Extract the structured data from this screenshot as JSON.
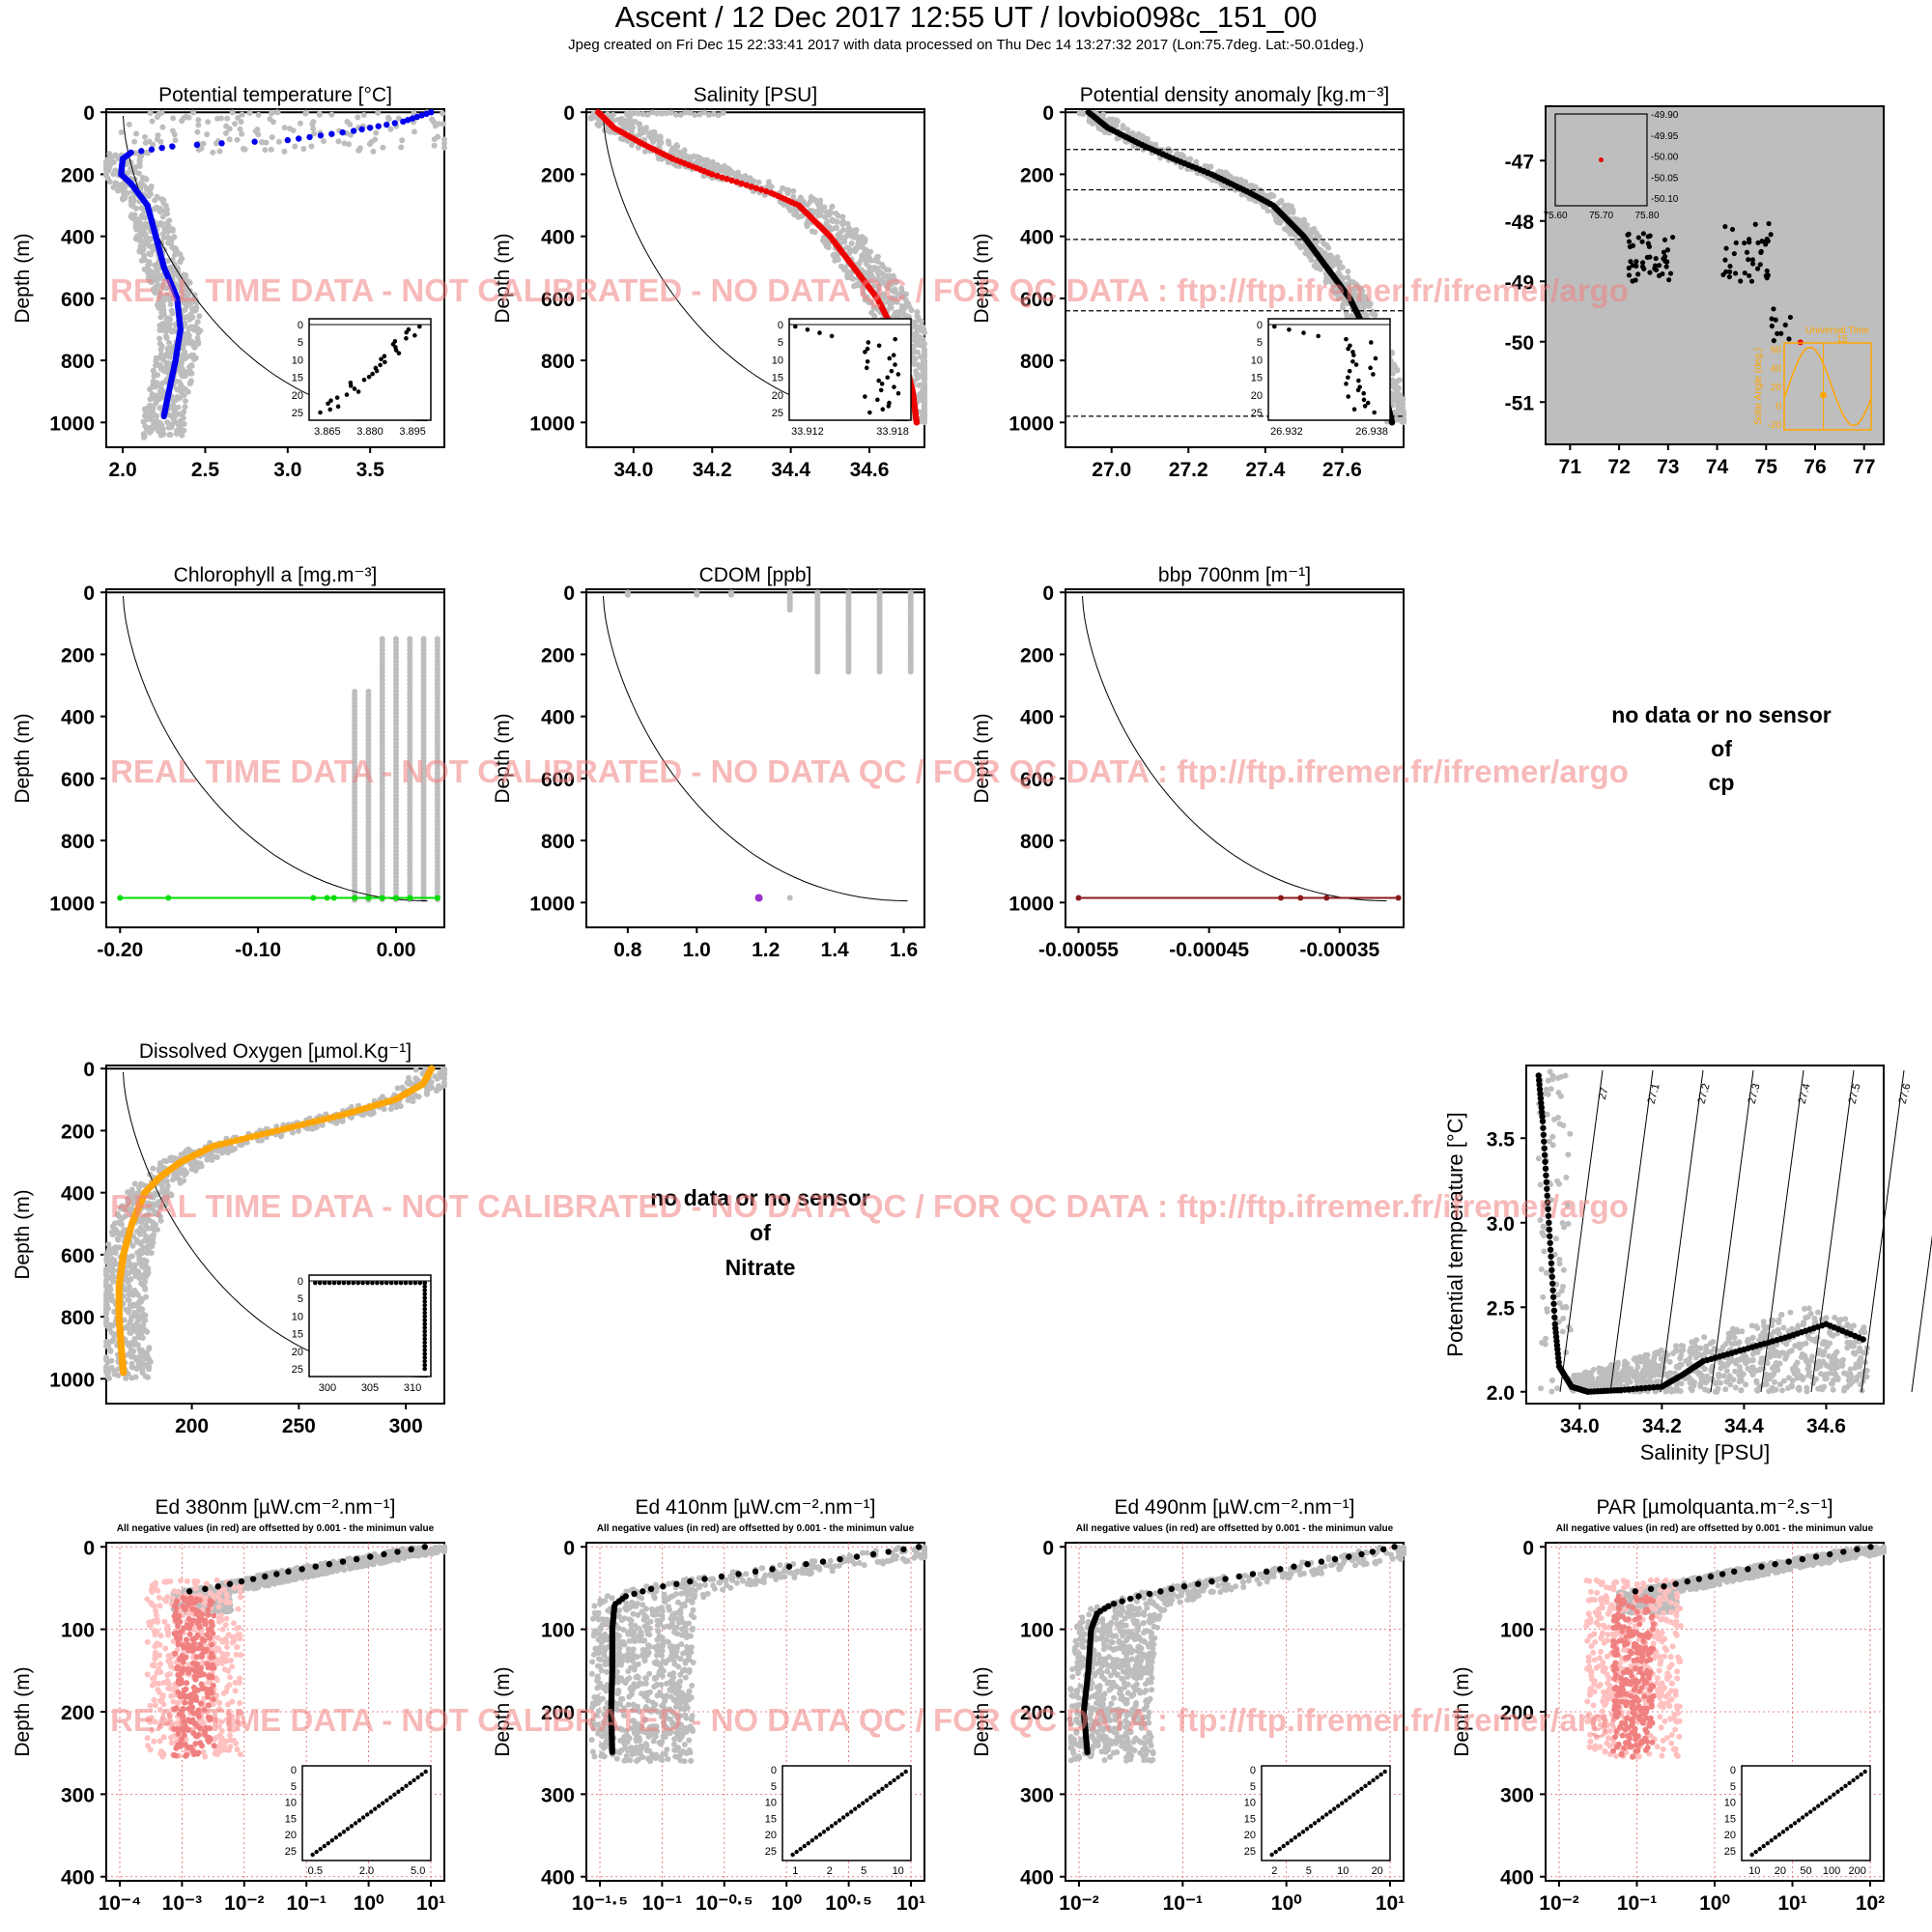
{
  "header": {
    "title": "Ascent / 12 Dec 2017 12:55 UT /  lovbio098c_151_00",
    "subtitle": "Jpeg created on Fri Dec 15 22:33:41 2017 with data processed on Thu Dec 14 13:27:32 2017 (Lon:75.7deg. Lat:-50.01deg.)"
  },
  "watermark": "REAL TIME DATA - NOT CALIBRATED - NO DATA QC   /  FOR QC DATA : ftp://ftp.ifremer.fr/ifremer/argo",
  "depth_label": "Depth (m)",
  "ed_note": "All negative values (in red) are offsetted by 0.001 - the minimun value",
  "colors": {
    "grey": "#bdbdbd",
    "temp": "#0000ee",
    "sal": "#ee0000",
    "dens": "#000000",
    "chl": "#00dd00",
    "cdom": "#9932cc",
    "bbp": "#8b1a1a",
    "oxy": "#ffa500",
    "edneg": "#f08080",
    "edneg_light": "#ffc0c0",
    "map_bg": "#bebebe",
    "sun": "#ffa500"
  },
  "nodata": {
    "cp": [
      "no data or no sensor",
      "of",
      "cp"
    ],
    "nitrate": [
      "no data or no sensor",
      "of",
      "Nitrate"
    ]
  },
  "chart_data": [
    {
      "id": "temp",
      "type": "scatter",
      "title": "Potential temperature [°C]",
      "xlim": [
        1.9,
        3.95
      ],
      "xticks": [
        "2.0",
        "2.5",
        "3.0",
        "3.5"
      ],
      "ylim": [
        1080,
        -10
      ],
      "yticks": [
        "0",
        "200",
        "400",
        "600",
        "800",
        "1000"
      ],
      "profile": {
        "depth": [
          0,
          30,
          60,
          90,
          100,
          110,
          130,
          150,
          200,
          230,
          300,
          400,
          500,
          600,
          700,
          800,
          900,
          980
        ],
        "value": [
          3.87,
          3.7,
          3.4,
          3.0,
          2.6,
          2.3,
          2.05,
          2.0,
          1.99,
          2.05,
          2.15,
          2.2,
          2.25,
          2.33,
          2.35,
          2.32,
          2.28,
          2.25
        ]
      },
      "inset": {
        "xticks": [
          "3.865",
          "3.880",
          "3.895"
        ],
        "yticks": [
          "0",
          "5",
          "10",
          "15",
          "20",
          "25"
        ]
      }
    },
    {
      "id": "sal",
      "type": "scatter",
      "title": "Salinity [PSU]",
      "xlim": [
        33.88,
        34.74
      ],
      "xticks": [
        "34.0",
        "34.2",
        "34.4",
        "34.6"
      ],
      "ylim": [
        1080,
        -10
      ],
      "yticks": [
        "0",
        "200",
        "400",
        "600",
        "800",
        "1000"
      ],
      "profile": {
        "depth": [
          0,
          50,
          100,
          150,
          200,
          240,
          260,
          300,
          400,
          500,
          600,
          700,
          800,
          900,
          1000
        ],
        "value": [
          33.91,
          33.95,
          34.02,
          34.1,
          34.2,
          34.3,
          34.35,
          34.42,
          34.5,
          34.56,
          34.62,
          34.66,
          34.69,
          34.71,
          34.72
        ]
      },
      "inset": {
        "xticks": [
          "33.912",
          "33.918"
        ],
        "yticks": [
          "0",
          "5",
          "10",
          "15",
          "20",
          "25"
        ]
      }
    },
    {
      "id": "dens",
      "type": "scatter",
      "title": "Potential density anomaly [kg.m⁻³]",
      "xlim": [
        26.88,
        27.76
      ],
      "xticks": [
        "27.0",
        "27.2",
        "27.4",
        "27.6"
      ],
      "ylim": [
        1080,
        -10
      ],
      "yticks": [
        "0",
        "200",
        "400",
        "600",
        "800",
        "1000"
      ],
      "mld": [
        120,
        250,
        410,
        640,
        980
      ],
      "profile": {
        "depth": [
          0,
          50,
          100,
          150,
          200,
          260,
          300,
          400,
          500,
          600,
          700,
          800,
          900,
          1000
        ],
        "value": [
          26.94,
          26.99,
          27.07,
          27.16,
          27.26,
          27.36,
          27.42,
          27.5,
          27.56,
          27.62,
          27.66,
          27.69,
          27.71,
          27.73
        ]
      },
      "inset": {
        "xticks": [
          "26.932",
          "26.938"
        ],
        "yticks": [
          "0",
          "5",
          "10",
          "15",
          "20",
          "25"
        ]
      }
    },
    {
      "id": "map",
      "type": "scatter",
      "xlim": [
        70.5,
        77.4
      ],
      "xticks": [
        "71",
        "72",
        "73",
        "74",
        "75",
        "76",
        "77"
      ],
      "ylim": [
        -51.7,
        -46.1
      ],
      "yticks": [
        "-47",
        "-48",
        "-49",
        "-50",
        "-51"
      ],
      "zoom": {
        "xticks": [
          "75.60",
          "75.70",
          "75.80"
        ],
        "yticks": [
          "-49.90",
          "-49.95",
          "-50.00",
          "-50.05",
          "-50.10"
        ],
        "point": [
          75.7,
          -50.01
        ]
      },
      "sun": {
        "label": "Universal Time",
        "hour": "15",
        "ylabel": "Solar Angle (deg.)",
        "yticks": [
          "60",
          "40",
          "20",
          "0",
          "-20"
        ]
      },
      "current": [
        75.7,
        -50.01
      ]
    },
    {
      "id": "chl",
      "type": "scatter",
      "title": "Chlorophyll a [mg.m⁻³]",
      "xlim": [
        -0.21,
        0.035
      ],
      "xticks": [
        "-0.20",
        "-0.10",
        "0.00"
      ],
      "ylim": [
        1080,
        -10
      ],
      "yticks": [
        "0",
        "200",
        "400",
        "600",
        "800",
        "1000"
      ],
      "points": {
        "x": [
          -0.2,
          -0.165,
          -0.06,
          -0.05,
          -0.045,
          -0.03,
          -0.02,
          -0.01,
          0.0,
          0.01,
          0.03
        ],
        "depth": 985
      }
    },
    {
      "id": "cdom",
      "type": "scatter",
      "title": "CDOM [ppb]",
      "xlim": [
        0.68,
        1.66
      ],
      "xticks": [
        "0.8",
        "1.0",
        "1.2",
        "1.4",
        "1.6"
      ],
      "ylim": [
        1080,
        -10
      ],
      "yticks": [
        "0",
        "200",
        "400",
        "600",
        "800",
        "1000"
      ],
      "points": {
        "x": [
          1.18
        ],
        "depth": 985
      }
    },
    {
      "id": "bbp",
      "type": "scatter",
      "title": "bbp 700nm [m⁻¹]",
      "xlim": [
        -0.00056,
        -0.000301
      ],
      "xticks": [
        "-0.00055",
        "-0.00045",
        "-0.00035"
      ],
      "ylim": [
        1080,
        -10
      ],
      "yticks": [
        "0",
        "200",
        "400",
        "600",
        "800",
        "1000"
      ],
      "points": {
        "x": [
          -0.00055,
          -0.000395,
          -0.00038,
          -0.00036,
          -0.000305
        ],
        "depth": 985
      }
    },
    {
      "id": "oxy",
      "type": "scatter",
      "title": "Dissolved Oxygen [µmol.Kg⁻¹]",
      "xlim": [
        160,
        318
      ],
      "xticks": [
        "200",
        "250",
        "300"
      ],
      "ylim": [
        1080,
        -10
      ],
      "yticks": [
        "0",
        "200",
        "400",
        "600",
        "800",
        "1000"
      ],
      "profile": {
        "depth": [
          0,
          50,
          100,
          150,
          200,
          250,
          300,
          350,
          400,
          500,
          600,
          700,
          800,
          900,
          980
        ],
        "value": [
          312,
          308,
          295,
          270,
          240,
          210,
          195,
          185,
          178,
          172,
          168,
          166,
          166,
          167,
          168
        ]
      },
      "inset": {
        "xticks": [
          "300",
          "305",
          "310"
        ],
        "yticks": [
          "0",
          "5",
          "10",
          "15",
          "20",
          "25"
        ]
      }
    },
    {
      "id": "ts",
      "type": "scatter",
      "xlabel": "Salinity [PSU]",
      "ylabel": "Potential temperature [°C]",
      "xlim": [
        33.87,
        34.74
      ],
      "xticks": [
        "34.0",
        "34.2",
        "34.4",
        "34.6"
      ],
      "ylim": [
        1.93,
        3.93
      ],
      "yticks": [
        "2.0",
        "2.5",
        "3.0",
        "3.5"
      ],
      "isopycnals": [
        "27",
        "27.1",
        "27.2",
        "27.3",
        "27.4",
        "27.5",
        "27.6",
        "27.7"
      ],
      "profile": {
        "sal": [
          33.9,
          33.91,
          33.92,
          33.93,
          33.94,
          33.95,
          33.98,
          34.02,
          34.1,
          34.2,
          34.25,
          34.3,
          34.4,
          34.5,
          34.6,
          34.7
        ],
        "temp": [
          3.87,
          3.6,
          3.2,
          2.8,
          2.4,
          2.15,
          2.03,
          2.0,
          2.01,
          2.03,
          2.1,
          2.18,
          2.25,
          2.32,
          2.4,
          2.3
        ]
      }
    },
    {
      "id": "ed380",
      "type": "scatter",
      "title": "Ed 380nm [µW.cm⁻².nm⁻¹]",
      "xlim_log": [
        -4,
        1.2
      ],
      "xticks": [
        "10⁻⁴",
        "10⁻³",
        "10⁻²",
        "10⁻¹",
        "10⁰",
        "10¹"
      ],
      "ylim": [
        405,
        -5
      ],
      "yticks": [
        "0",
        "100",
        "200",
        "300",
        "400"
      ],
      "profile": {
        "depth": [
          0,
          10,
          20,
          30,
          40,
          50,
          55
        ],
        "value_log": [
          0.9,
          0.2,
          -0.5,
          -1.2,
          -1.8,
          -2.4,
          -2.8
        ]
      },
      "inset": {
        "xticks": [
          "0.5",
          "2.0",
          "5.0"
        ],
        "yticks": [
          "0",
          "5",
          "10",
          "15",
          "20",
          "25"
        ]
      }
    },
    {
      "id": "ed410",
      "type": "scatter",
      "title": "Ed 410nm [µW.cm⁻².nm⁻¹]",
      "xlim_log": [
        -1.7,
        1.3
      ],
      "xticks": [
        "10⁻¹·⁵",
        "10⁻¹",
        "10⁻⁰·⁵",
        "10⁰",
        "10⁰·⁵",
        "10¹"
      ],
      "ylim": [
        405,
        -5
      ],
      "yticks": [
        "0",
        "100",
        "200",
        "300",
        "400"
      ],
      "profile": {
        "depth": [
          0,
          10,
          20,
          30,
          40,
          50,
          60,
          70,
          100,
          150,
          200,
          250
        ],
        "value_log": [
          1.25,
          0.8,
          0.3,
          -0.2,
          -0.7,
          -1.1,
          -1.35,
          -1.45,
          -1.47,
          -1.47,
          -1.48,
          -1.47
        ]
      },
      "inset": {
        "xticks": [
          "1",
          "2",
          "5",
          "10"
        ],
        "yticks": [
          "0",
          "5",
          "10",
          "15",
          "20",
          "25"
        ]
      }
    },
    {
      "id": "ed490",
      "type": "scatter",
      "title": "Ed 490nm [µW.cm⁻².nm⁻¹]",
      "xlim_log": [
        -2.3,
        1.4
      ],
      "xticks": [
        "10⁻²",
        "10⁻¹",
        "10⁰",
        "10¹"
      ],
      "ylim": [
        405,
        -5
      ],
      "yticks": [
        "0",
        "100",
        "200",
        "300",
        "400"
      ],
      "profile": {
        "depth": [
          0,
          10,
          20,
          30,
          40,
          50,
          60,
          70,
          80,
          100,
          150,
          200,
          250
        ],
        "value_log": [
          1.3,
          0.9,
          0.4,
          -0.1,
          -0.6,
          -1.1,
          -1.5,
          -1.8,
          -1.95,
          -2.02,
          -2.05,
          -2.1,
          -2.06
        ]
      },
      "inset": {
        "xticks": [
          "2",
          "5",
          "10",
          "20"
        ],
        "yticks": [
          "0",
          "5",
          "10",
          "15",
          "20",
          "25"
        ]
      }
    },
    {
      "id": "par",
      "type": "scatter",
      "title": "PAR [µmolquanta.m⁻².s⁻¹]",
      "xlim_log": [
        -2.7,
        2.5
      ],
      "xticks": [
        "10⁻²",
        "10⁻¹",
        "10⁰",
        "10¹",
        "10²"
      ],
      "ylim": [
        405,
        -5
      ],
      "yticks": [
        "0",
        "100",
        "200",
        "300",
        "400"
      ],
      "profile": {
        "depth": [
          0,
          10,
          20,
          30,
          40,
          50,
          55
        ],
        "value_log": [
          2.3,
          1.6,
          0.9,
          0.2,
          -0.4,
          -1.0,
          -1.4
        ]
      },
      "inset": {
        "xticks": [
          "10",
          "20",
          "50",
          "100",
          "200"
        ],
        "yticks": [
          "0",
          "5",
          "10",
          "15",
          "20",
          "25"
        ]
      }
    }
  ]
}
